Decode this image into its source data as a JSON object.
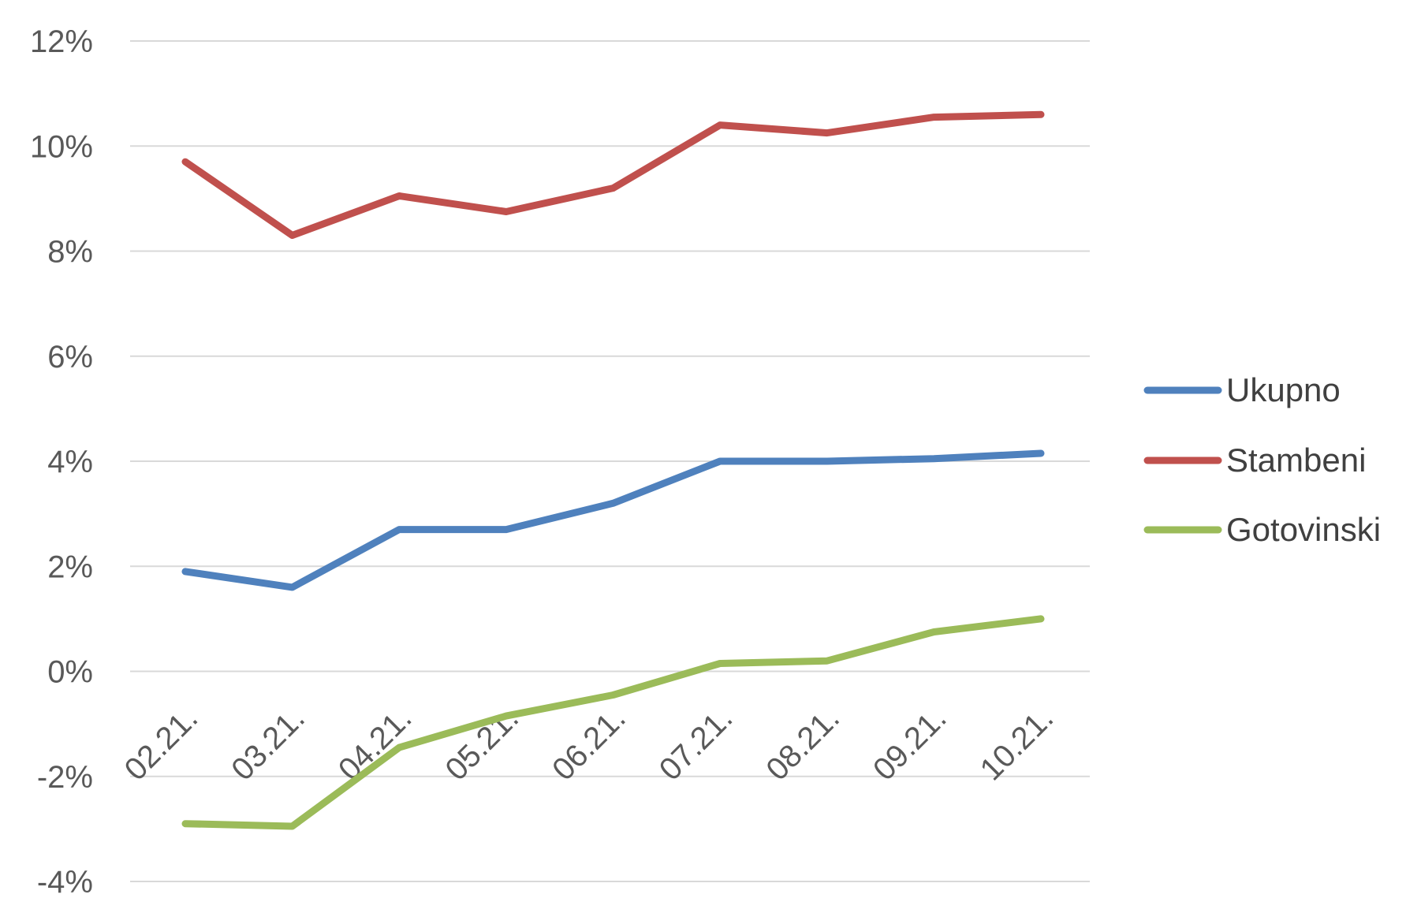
{
  "chart_data": {
    "type": "line",
    "title": "",
    "xlabel": "",
    "ylabel": "",
    "categories": [
      "02.21.",
      "03.21.",
      "04.21.",
      "05.21.",
      "06.21.",
      "07.21.",
      "08.21.",
      "09.21.",
      "10.21."
    ],
    "series": [
      {
        "name": "Ukupno",
        "color": "#4f81bd",
        "values": [
          1.9,
          1.6,
          2.7,
          2.7,
          3.2,
          4.0,
          4.0,
          4.05,
          4.15
        ]
      },
      {
        "name": "Stambeni",
        "color": "#c0504d",
        "values": [
          9.7,
          8.3,
          9.05,
          8.75,
          9.2,
          10.4,
          10.25,
          10.55,
          10.6
        ]
      },
      {
        "name": "Gotovinski",
        "color": "#9bbb59",
        "values": [
          -2.9,
          -2.95,
          -1.45,
          -0.85,
          -0.45,
          0.15,
          0.2,
          0.75,
          1.0
        ]
      }
    ],
    "y_ticks": [
      "12%",
      "10%",
      "8%",
      "6%",
      "4%",
      "2%",
      "0%",
      "-2%",
      "-4%"
    ],
    "y_tick_values": [
      12,
      10,
      8,
      6,
      4,
      2,
      0,
      -2,
      -4
    ],
    "ylim": [
      -4,
      12
    ],
    "grid": true,
    "legend_position": "right"
  }
}
